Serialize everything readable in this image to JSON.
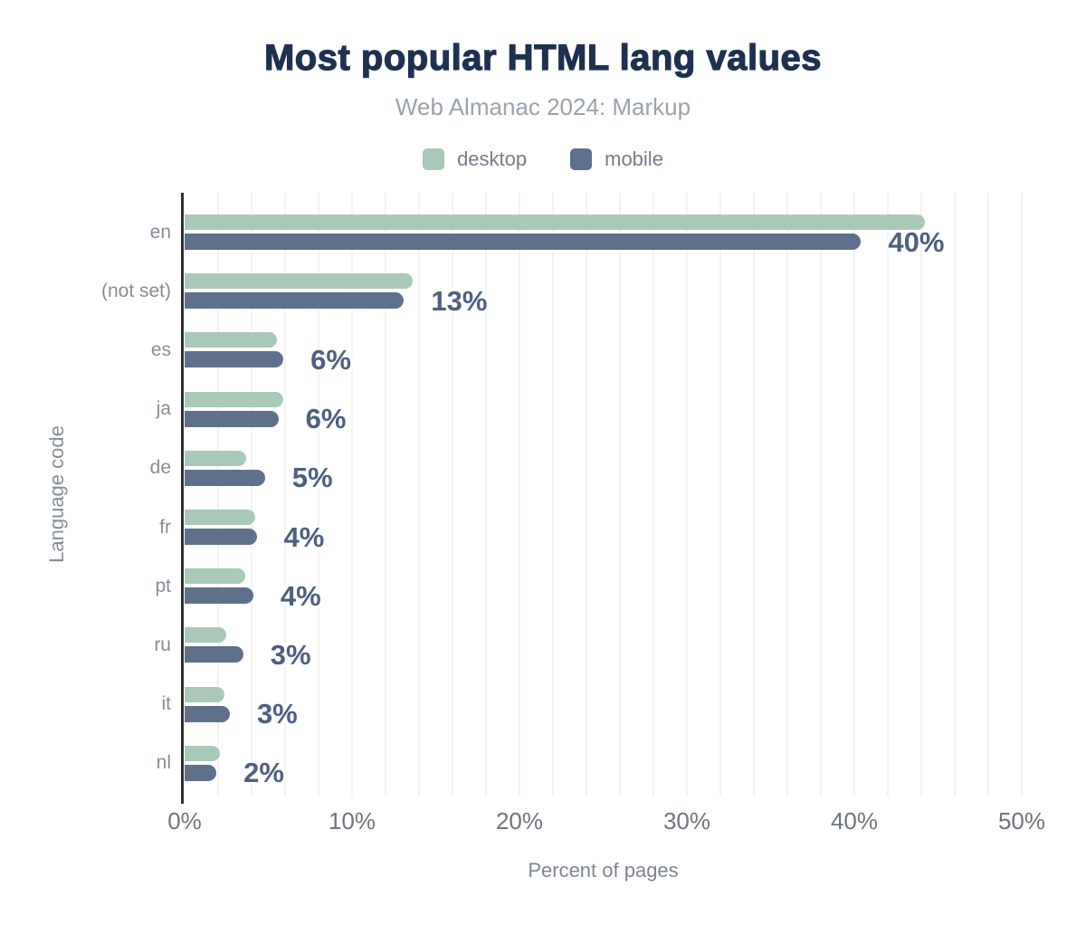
{
  "chart_data": {
    "type": "bar",
    "orientation": "horizontal",
    "title": "Most popular HTML lang values",
    "subtitle": "Web Almanac 2024: Markup",
    "categories": [
      "en",
      "(not set)",
      "es",
      "ja",
      "de",
      "fr",
      "pt",
      "ru",
      "it",
      "nl"
    ],
    "series": [
      {
        "name": "desktop",
        "color": "#a8c9b8",
        "values": [
          44.2,
          13.6,
          5.5,
          5.9,
          3.7,
          4.2,
          3.6,
          2.5,
          2.4,
          2.1
        ]
      },
      {
        "name": "mobile",
        "color": "#5f708c",
        "values": [
          40.4,
          13.1,
          5.9,
          5.6,
          4.8,
          4.3,
          4.1,
          3.5,
          2.7,
          1.9
        ]
      }
    ],
    "data_labels": [
      "40%",
      "13%",
      "6%",
      "6%",
      "5%",
      "4%",
      "4%",
      "3%",
      "3%",
      "2%"
    ],
    "data_label_series": "mobile",
    "xlabel": "Percent of pages",
    "ylabel": "Language code",
    "xlim": [
      0,
      50
    ],
    "x_ticks": [
      "0%",
      "10%",
      "20%",
      "30%",
      "40%",
      "50%"
    ],
    "x_tick_values": [
      0,
      10,
      20,
      30,
      40,
      50
    ],
    "grid": "vertical minor gridlines every 2%",
    "legend_position": "top center"
  },
  "colors": {
    "background": "#ffffff",
    "title": "#1e3150",
    "subtitle": "#9aa2ae",
    "legend_text": "#757d89",
    "category_label": "#868d98",
    "tick_label": "#6f757e",
    "data_label": "#4d6080",
    "desktop_bar": "#a8c9b8",
    "mobile_bar": "#5f708c",
    "axis_line": "#2f2f2f",
    "gridline": "#f3f3f4"
  }
}
